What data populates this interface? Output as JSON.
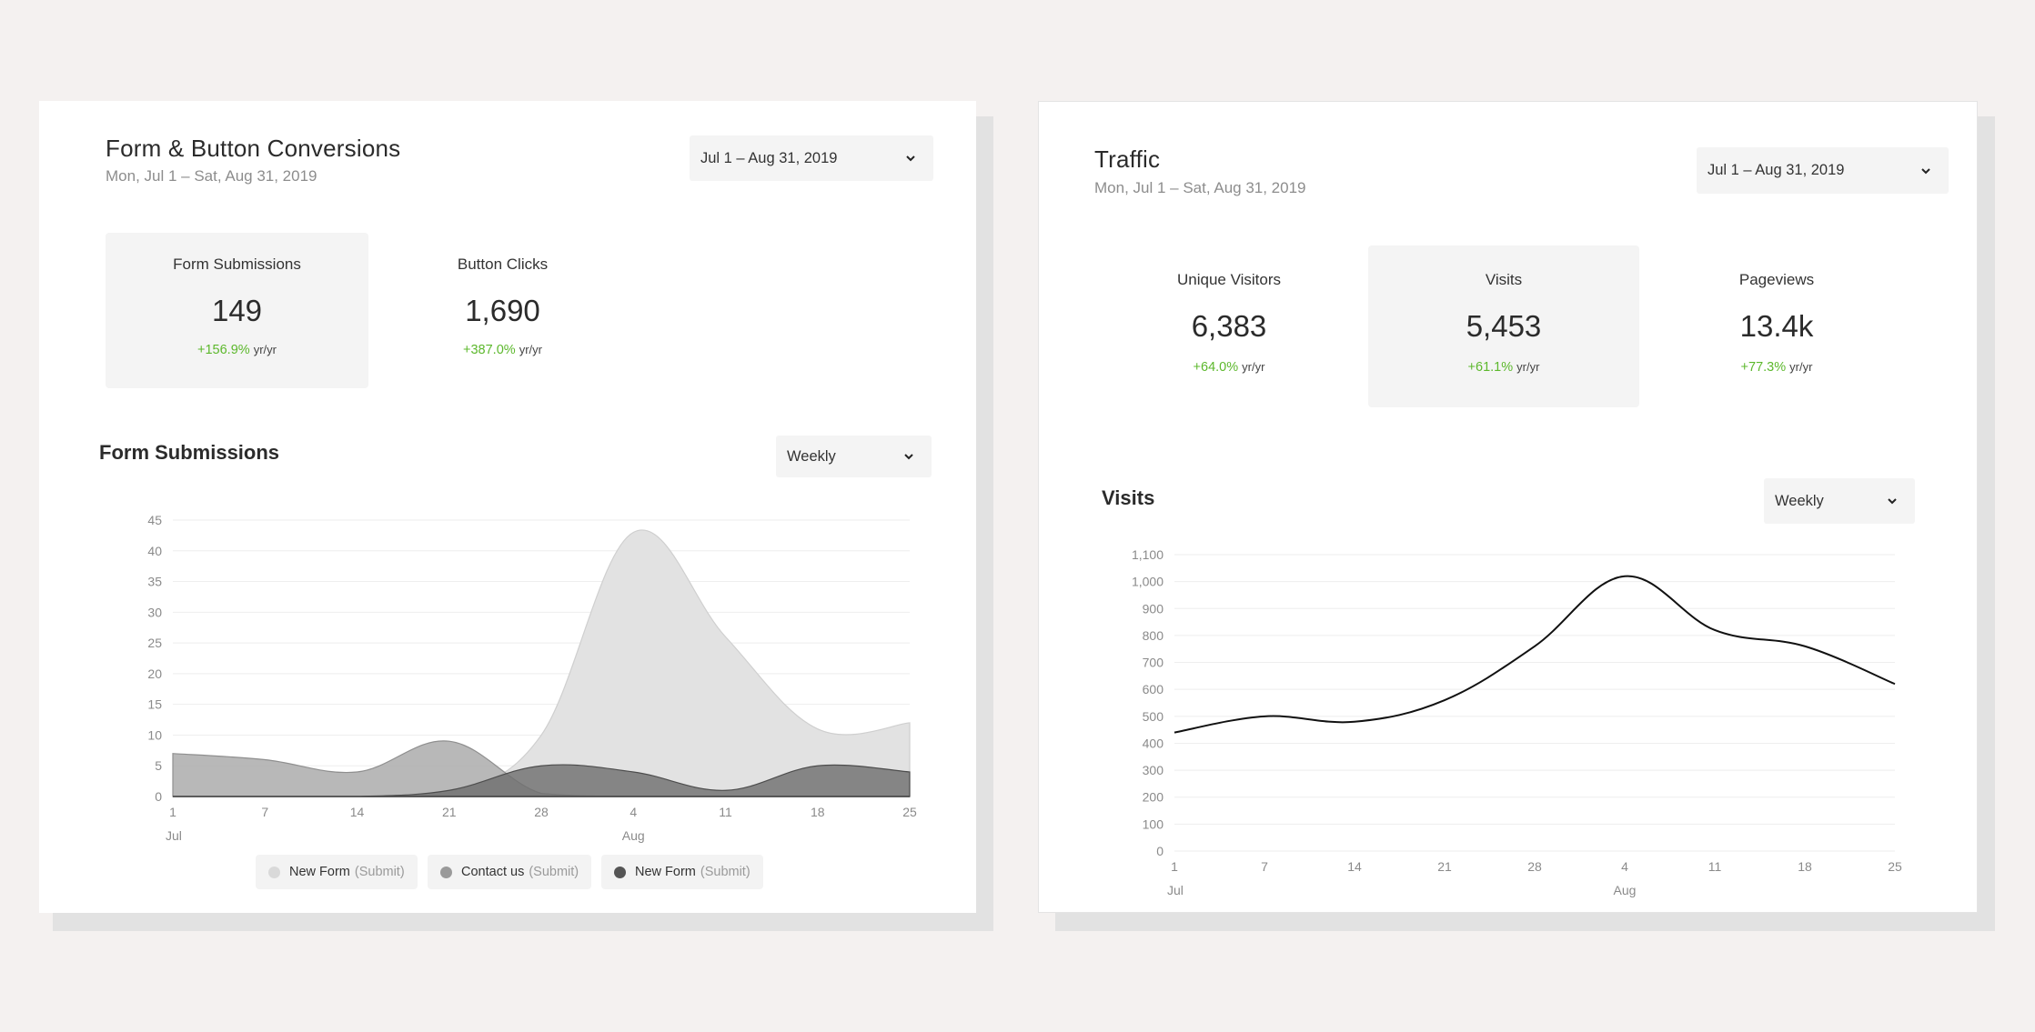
{
  "left_card": {
    "title": "Form & Button Conversions",
    "subtitle": "Mon, Jul 1 – Sat, Aug 31, 2019",
    "date_range": "Jul 1 – Aug 31, 2019",
    "metrics": [
      {
        "label": "Form Submissions",
        "value": "149",
        "change": "+156.9%",
        "unit": "yr/yr"
      },
      {
        "label": "Button Clicks",
        "value": "1,690",
        "change": "+387.0%",
        "unit": "yr/yr"
      }
    ],
    "chart_title": "Form Submissions",
    "interval": "Weekly",
    "legend": [
      {
        "name": "New Form",
        "suffix": "(Submit)",
        "color": "#d9d9d9"
      },
      {
        "name": "Contact us",
        "suffix": "(Submit)",
        "color": "#9a9a9a"
      },
      {
        "name": "New Form",
        "suffix": "(Submit)",
        "color": "#555555"
      }
    ]
  },
  "right_card": {
    "title": "Traffic",
    "subtitle": "Mon, Jul 1 – Sat, Aug 31, 2019",
    "date_range": "Jul 1 – Aug 31, 2019",
    "metrics": [
      {
        "label": "Unique Visitors",
        "value": "6,383",
        "change": "+64.0%",
        "unit": "yr/yr"
      },
      {
        "label": "Visits",
        "value": "5,453",
        "change": "+61.1%",
        "unit": "yr/yr"
      },
      {
        "label": "Pageviews",
        "value": "13.4k",
        "change": "+77.3%",
        "unit": "yr/yr"
      }
    ],
    "chart_title": "Visits",
    "interval": "Weekly"
  },
  "colors": {
    "background": "#f4f1f0",
    "positive": "#5cb82c",
    "area_light": "#e0e0e0",
    "area_mid": "#ababab",
    "area_dark": "#6e6e6e",
    "line": "#111111"
  },
  "chart_data": [
    {
      "type": "area",
      "x_ticks": [
        "1",
        "7",
        "14",
        "21",
        "28",
        "4",
        "11",
        "18",
        "25"
      ],
      "month_labels": [
        {
          "at": "1",
          "label": "Jul"
        },
        {
          "at": "4",
          "label": "Aug"
        }
      ],
      "ylim": [
        0,
        45
      ],
      "y_ticks": [
        0,
        5,
        10,
        15,
        20,
        25,
        30,
        35,
        40,
        45
      ],
      "grid": true,
      "series": [
        {
          "name": "New Form (Submit)",
          "values": [
            0,
            0,
            0,
            0.5,
            10,
            43,
            26,
            11,
            12
          ],
          "color": "#e0e0e0"
        },
        {
          "name": "Contact us (Submit)",
          "values": [
            7,
            6,
            4,
            9,
            0.5,
            0,
            0,
            0,
            0
          ],
          "color": "#ababab"
        },
        {
          "name": "New Form (Submit)",
          "values": [
            0,
            0,
            0,
            1,
            5,
            4,
            1,
            5,
            4
          ],
          "color": "#6e6e6e"
        }
      ]
    },
    {
      "type": "line",
      "x_ticks": [
        "1",
        "7",
        "14",
        "21",
        "28",
        "4",
        "11",
        "18",
        "25"
      ],
      "month_labels": [
        {
          "at": "1",
          "label": "Jul"
        },
        {
          "at": "4",
          "label": "Aug"
        }
      ],
      "ylim": [
        0,
        1100
      ],
      "y_ticks": [
        "0",
        "100",
        "200",
        "300",
        "400",
        "500",
        "600",
        "700",
        "800",
        "900",
        "1,000",
        "1,100"
      ],
      "grid": true,
      "series": [
        {
          "name": "Visits",
          "values": [
            440,
            500,
            480,
            560,
            760,
            1020,
            820,
            760,
            620
          ],
          "color": "#111111"
        }
      ]
    }
  ]
}
